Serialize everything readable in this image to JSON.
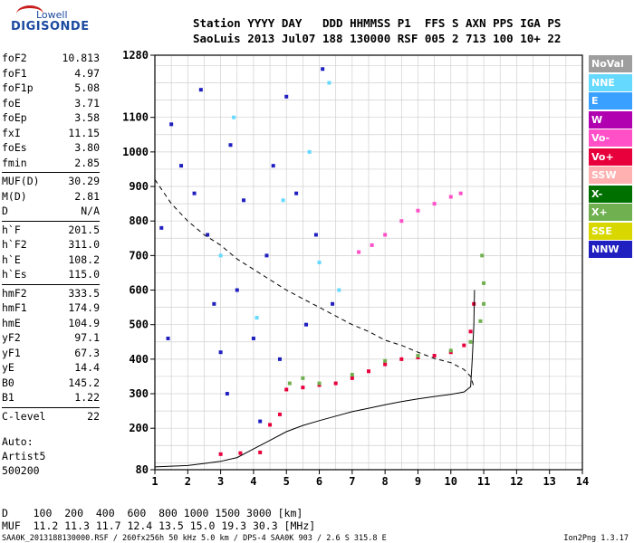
{
  "logo": {
    "top": "Lowell",
    "main": "DIGISONDE"
  },
  "header": {
    "line1": "Station YYYY DAY   DDD HHMMSS P1  FFS S AXN PPS IGA PS",
    "line2": "SaoLuis 2013 Jul07 188 130000 RSF 005 2 713 100 10+ 22"
  },
  "params": [
    {
      "label": "foF2",
      "value": "10.813"
    },
    {
      "label": "foF1",
      "value": "4.97"
    },
    {
      "label": "foF1p",
      "value": "5.08"
    },
    {
      "label": "foE",
      "value": "3.71"
    },
    {
      "label": "foEp",
      "value": "3.58"
    },
    {
      "label": "fxI",
      "value": "11.15"
    },
    {
      "label": "foEs",
      "value": "3.80"
    },
    {
      "label": "fmin",
      "value": "2.85"
    },
    {
      "label": "MUF(D)",
      "value": "30.29"
    },
    {
      "label": "M(D)",
      "value": "2.81"
    },
    {
      "label": "D",
      "value": "N/A"
    },
    {
      "label": "h`F",
      "value": "201.5"
    },
    {
      "label": "h`F2",
      "value": "311.0"
    },
    {
      "label": "h`E",
      "value": "108.2"
    },
    {
      "label": "h`Es",
      "value": "115.0"
    },
    {
      "label": "hmF2",
      "value": "333.5"
    },
    {
      "label": "hmF1",
      "value": "174.9"
    },
    {
      "label": "hmE",
      "value": "104.9"
    },
    {
      "label": "yF2",
      "value": "97.1"
    },
    {
      "label": "yF1",
      "value": "67.3"
    },
    {
      "label": "yE",
      "value": "14.4"
    },
    {
      "label": "B0",
      "value": "145.2"
    },
    {
      "label": "B1",
      "value": "1.22"
    },
    {
      "label": "C-level",
      "value": "22"
    }
  ],
  "autoscaling": {
    "line1": "Auto:",
    "line2": "Artist5",
    "line3": "500200"
  },
  "legend": [
    {
      "label": "NoVal",
      "color": "#9e9e9e"
    },
    {
      "label": "NNE",
      "color": "#66d9ff"
    },
    {
      "label": "E",
      "color": "#3aa0ff"
    },
    {
      "label": "W",
      "color": "#b000b0"
    },
    {
      "label": "Vo-",
      "color": "#ff50c8"
    },
    {
      "label": "Vo+",
      "color": "#e8003c"
    },
    {
      "label": "SSW",
      "color": "#ffb0b0"
    },
    {
      "label": "X-",
      "color": "#007000"
    },
    {
      "label": "X+",
      "color": "#70b050"
    },
    {
      "label": "SSE",
      "color": "#d8d800"
    },
    {
      "label": "NNW",
      "color": "#2020c0"
    }
  ],
  "chart_data": {
    "type": "scatter",
    "xlim": [
      1,
      14
    ],
    "ylim": [
      80,
      1280
    ],
    "x_ticks": [
      "1",
      "2",
      "3",
      "4",
      "5",
      "6",
      "7",
      "8",
      "9",
      "10",
      "11",
      "12",
      "13",
      "14"
    ],
    "y_ticks": [
      "80",
      "200",
      "300",
      "400",
      "500",
      "600",
      "700",
      "800",
      "900",
      "1000",
      "1100",
      "1280"
    ],
    "grid": true,
    "series": [
      {
        "name": "Vo+",
        "color": "#e8003c",
        "points": [
          [
            3.0,
            125
          ],
          [
            3.6,
            128
          ],
          [
            4.2,
            130
          ],
          [
            4.5,
            210
          ],
          [
            4.8,
            240
          ],
          [
            5.0,
            312
          ],
          [
            5.5,
            318
          ],
          [
            6.0,
            325
          ],
          [
            6.5,
            330
          ],
          [
            7.0,
            345
          ],
          [
            7.5,
            365
          ],
          [
            8.0,
            385
          ],
          [
            8.5,
            400
          ],
          [
            9.0,
            405
          ],
          [
            9.5,
            410
          ],
          [
            10.0,
            420
          ],
          [
            10.4,
            440
          ],
          [
            10.6,
            480
          ],
          [
            10.7,
            560
          ]
        ]
      },
      {
        "name": "X+",
        "color": "#70b050",
        "points": [
          [
            5.1,
            330
          ],
          [
            5.5,
            345
          ],
          [
            6.0,
            330
          ],
          [
            7.0,
            355
          ],
          [
            8.0,
            395
          ],
          [
            9.0,
            410
          ],
          [
            10.0,
            425
          ],
          [
            10.6,
            450
          ],
          [
            10.9,
            510
          ],
          [
            11.0,
            560
          ],
          [
            11.0,
            620
          ],
          [
            10.95,
            700
          ]
        ]
      },
      {
        "name": "Vo-",
        "color": "#ff50c8",
        "points": [
          [
            7.2,
            710
          ],
          [
            7.6,
            730
          ],
          [
            8.0,
            760
          ],
          [
            8.5,
            800
          ],
          [
            9.0,
            830
          ],
          [
            9.5,
            850
          ],
          [
            10.0,
            870
          ],
          [
            10.3,
            880
          ]
        ]
      },
      {
        "name": "NNW",
        "color": "#2020c0",
        "points": [
          [
            1.5,
            1080
          ],
          [
            1.8,
            960
          ],
          [
            2.2,
            880
          ],
          [
            2.6,
            760
          ],
          [
            2.8,
            560
          ],
          [
            3.0,
            420
          ],
          [
            3.2,
            300
          ],
          [
            3.5,
            600
          ],
          [
            3.7,
            860
          ],
          [
            4.0,
            460
          ],
          [
            4.2,
            220
          ],
          [
            4.4,
            700
          ],
          [
            4.6,
            960
          ],
          [
            4.8,
            400
          ],
          [
            5.0,
            1160
          ],
          [
            5.3,
            880
          ],
          [
            5.6,
            500
          ],
          [
            5.9,
            760
          ],
          [
            6.1,
            1240
          ],
          [
            6.4,
            560
          ],
          [
            1.2,
            780
          ],
          [
            1.4,
            460
          ],
          [
            2.4,
            1180
          ],
          [
            3.3,
            1020
          ]
        ]
      },
      {
        "name": "NNE",
        "color": "#66d9ff",
        "points": [
          [
            3.0,
            700
          ],
          [
            3.4,
            1100
          ],
          [
            4.1,
            520
          ],
          [
            4.9,
            860
          ],
          [
            5.7,
            1000
          ],
          [
            6.0,
            680
          ],
          [
            6.3,
            1200
          ],
          [
            6.6,
            600
          ]
        ]
      }
    ],
    "curves": [
      {
        "name": "profile-solid",
        "style": "solid",
        "points": [
          [
            1.0,
            88
          ],
          [
            2.0,
            92
          ],
          [
            2.5,
            98
          ],
          [
            3.0,
            104
          ],
          [
            3.5,
            115
          ],
          [
            4.0,
            140
          ],
          [
            4.5,
            165
          ],
          [
            5.0,
            190
          ],
          [
            5.5,
            208
          ],
          [
            6.0,
            222
          ],
          [
            6.5,
            235
          ],
          [
            7.0,
            248
          ],
          [
            7.5,
            258
          ],
          [
            8.0,
            268
          ],
          [
            8.5,
            277
          ],
          [
            9.0,
            285
          ],
          [
            9.5,
            292
          ],
          [
            10.0,
            298
          ],
          [
            10.4,
            305
          ],
          [
            10.6,
            320
          ],
          [
            10.65,
            400
          ],
          [
            10.7,
            500
          ],
          [
            10.72,
            600
          ]
        ]
      },
      {
        "name": "profile-dashed",
        "style": "dashed",
        "points": [
          [
            1.0,
            920
          ],
          [
            1.5,
            850
          ],
          [
            2.0,
            800
          ],
          [
            2.5,
            760
          ],
          [
            3.0,
            730
          ],
          [
            3.5,
            690
          ],
          [
            4.0,
            660
          ],
          [
            4.5,
            630
          ],
          [
            5.0,
            600
          ],
          [
            5.5,
            575
          ],
          [
            6.0,
            550
          ],
          [
            6.5,
            525
          ],
          [
            7.0,
            500
          ],
          [
            7.5,
            480
          ],
          [
            8.0,
            455
          ],
          [
            8.5,
            440
          ],
          [
            9.0,
            420
          ],
          [
            9.5,
            402
          ],
          [
            10.0,
            390
          ],
          [
            10.4,
            370
          ],
          [
            10.6,
            350
          ],
          [
            10.7,
            320
          ]
        ]
      }
    ]
  },
  "bottom": {
    "d_row": "D    100  200  400  600  800 1000 1500 3000 [km]",
    "muf_row": "MUF  11.2 11.3 11.7 12.4 13.5 15.0 19.3 30.3 [MHz]"
  },
  "footer": {
    "text": "SAA0K_2013188130000.RSF / 260fx256h 50 kHz 5.0 km / DPS-4 SAA0K 903 / 2.6 S 315.8 E",
    "version": "Ion2Png 1.3.17"
  }
}
